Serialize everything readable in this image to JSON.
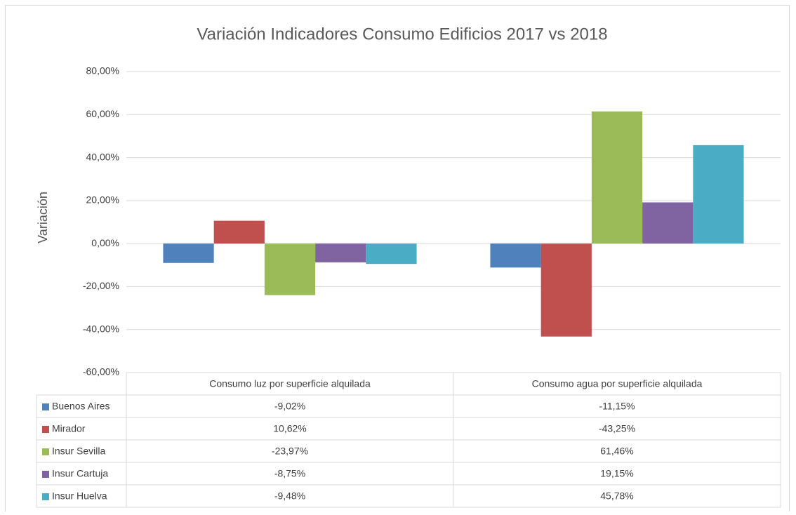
{
  "chart_data": {
    "type": "bar",
    "title": "Variación Indicadores Consumo Edificios 2017 vs 2018",
    "y_label": "Variación",
    "categories": [
      "Consumo luz por superficie alquilada",
      "Consumo agua por superficie alquilada"
    ],
    "series": [
      {
        "name": "Buenos Aires",
        "color": "#4f81bd",
        "values": [
          -9.02,
          -11.15
        ],
        "value_labels": [
          "-9,02%",
          "-11,15%"
        ]
      },
      {
        "name": "Mirador",
        "color": "#c0504d",
        "values": [
          10.62,
          -43.25
        ],
        "value_labels": [
          "10,62%",
          "-43,25%"
        ]
      },
      {
        "name": "Insur Sevilla",
        "color": "#9bbb59",
        "values": [
          -23.97,
          61.46
        ],
        "value_labels": [
          "-23,97%",
          "61,46%"
        ]
      },
      {
        "name": "Insur Cartuja",
        "color": "#8064a2",
        "values": [
          -8.75,
          19.15
        ],
        "value_labels": [
          "-8,75%",
          "19,15%"
        ]
      },
      {
        "name": "Insur Huelva",
        "color": "#4bacc6",
        "values": [
          -9.48,
          45.78
        ],
        "value_labels": [
          "-9,48%",
          "45,78%"
        ]
      }
    ],
    "ylim": [
      -60,
      80
    ],
    "yticks": [
      {
        "value": -60,
        "label": "-60,00%"
      },
      {
        "value": -40,
        "label": "-40,00%"
      },
      {
        "value": -20,
        "label": "-20,00%"
      },
      {
        "value": 0,
        "label": "0,00%"
      },
      {
        "value": 20,
        "label": "20,00%"
      },
      {
        "value": 40,
        "label": "40,00%"
      },
      {
        "value": 60,
        "label": "60,00%"
      },
      {
        "value": 80,
        "label": "80,00%"
      }
    ],
    "grid": true
  }
}
